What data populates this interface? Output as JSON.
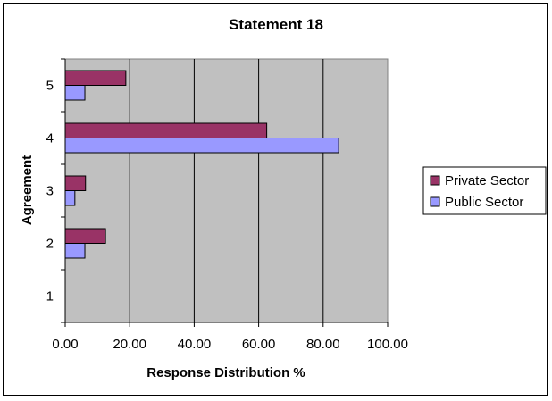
{
  "chart_data": {
    "type": "bar",
    "orientation": "horizontal",
    "title": "Statement 18",
    "xlabel": "Response Distribution %",
    "ylabel": "Agreement",
    "xlim": [
      0,
      100
    ],
    "x_ticks": [
      "0.00",
      "20.00",
      "40.00",
      "60.00",
      "80.00",
      "100.00"
    ],
    "x_tick_values": [
      0,
      20,
      40,
      60,
      80,
      100
    ],
    "categories": [
      "1",
      "2",
      "3",
      "4",
      "5"
    ],
    "series": [
      {
        "name": "Private Sector",
        "color": "#993366",
        "values": [
          0,
          12.5,
          6.3,
          62.5,
          18.8
        ]
      },
      {
        "name": "Public Sector",
        "color": "#9999FF",
        "values": [
          0,
          6.1,
          3.0,
          84.8,
          6.1
        ]
      }
    ],
    "grid": true,
    "plot_background": "#C0C0C0",
    "legend_position": "right"
  }
}
